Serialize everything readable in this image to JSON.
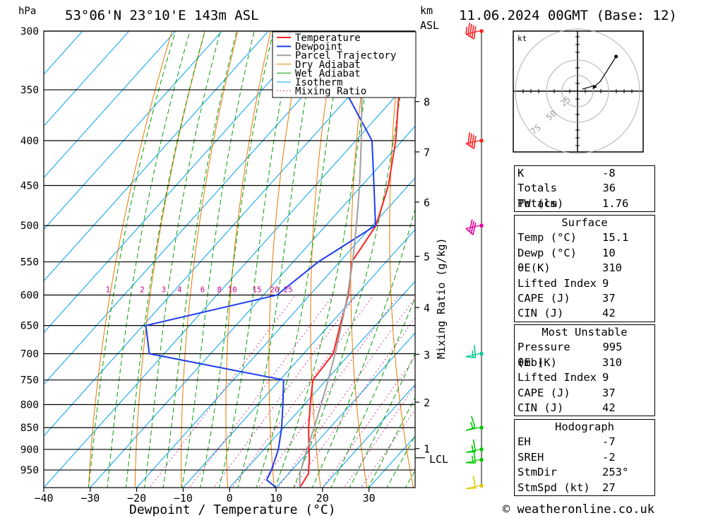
{
  "header": {
    "location": "53°06'N 23°10'E 143m ASL",
    "datetime": "11.06.2024 00GMT (Base: 12)",
    "pressure_unit": "hPa",
    "km_label": "km",
    "asl_label": "ASL"
  },
  "axes": {
    "xlabel": "Dewpoint / Temperature (°C)",
    "mixing_ratio_label": "Mixing Ratio (g/kg)",
    "lcl_label": "LCL"
  },
  "legend": [
    "Temperature",
    "Dewpoint",
    "Parcel Trajectory",
    "Dry Adiabat",
    "Wet Adiabat",
    "Isotherm",
    "Mixing Ratio"
  ],
  "colors": {
    "temperature": "#ff2020",
    "dewpoint": "#1e3cf0",
    "parcel": "#a0a0a0",
    "dry_adiabat": "#e87800",
    "wet_adiabat": "#00a000",
    "isotherm": "#00a0f0",
    "mixing_ratio": "#d0008c"
  },
  "chart_data": {
    "type": "line",
    "title": "53°06'N 23°10'E 143m ASL",
    "xlabel": "Dewpoint / Temperature (°C)",
    "ylabel": "hPa",
    "pressure_levels": [
      300,
      350,
      400,
      450,
      500,
      550,
      600,
      650,
      700,
      750,
      800,
      850,
      900,
      950
    ],
    "temperature_ticks": [
      -40,
      -30,
      -20,
      -10,
      0,
      10,
      20,
      30
    ],
    "xlim": [
      -40,
      40
    ],
    "ylim": [
      300,
      995
    ],
    "km_ticks": [
      {
        "label": "1",
        "p": 898
      },
      {
        "label": "2",
        "p": 795
      },
      {
        "label": "3",
        "p": 701
      },
      {
        "label": "4",
        "p": 620
      },
      {
        "label": "5",
        "p": 542
      },
      {
        "label": "6",
        "p": 470
      },
      {
        "label": "7",
        "p": 412
      },
      {
        "label": "8",
        "p": 361
      }
    ],
    "lcl_p": 920,
    "mixing_ratio_labels": [
      {
        "label": "1",
        "t": -26.2
      },
      {
        "label": "2",
        "t": -18.8
      },
      {
        "label": "3",
        "t": -14.2
      },
      {
        "label": "4",
        "t": -10.8
      },
      {
        "label": "6",
        "t": -5.8
      },
      {
        "label": "8",
        "t": -2.2
      },
      {
        "label": "10",
        "t": 0.6
      },
      {
        "label": "15",
        "t": 5.9
      },
      {
        "label": "20",
        "t": 9.7
      },
      {
        "label": "25",
        "t": 12.6
      }
    ],
    "series": [
      {
        "name": "Temperature",
        "points": [
          [
            995,
            15.1
          ],
          [
            960,
            14.3
          ],
          [
            925,
            11.8
          ],
          [
            900,
            9.7
          ],
          [
            850,
            5.4
          ],
          [
            800,
            1.3
          ],
          [
            750,
            -2.9
          ],
          [
            700,
            -3.6
          ],
          [
            650,
            -7.6
          ],
          [
            600,
            -11.7
          ],
          [
            550,
            -17.4
          ],
          [
            500,
            -19.2
          ],
          [
            450,
            -24.3
          ],
          [
            400,
            -31.4
          ],
          [
            350,
            -40.5
          ],
          [
            300,
            -50.1
          ]
        ]
      },
      {
        "name": "Dewpoint",
        "points": [
          [
            995,
            10.0
          ],
          [
            975,
            6.5
          ],
          [
            950,
            5.6
          ],
          [
            900,
            3.1
          ],
          [
            850,
            -0.4
          ],
          [
            800,
            -4.6
          ],
          [
            750,
            -9.2
          ],
          [
            700,
            -43.2
          ],
          [
            650,
            -49.4
          ],
          [
            600,
            -27.1
          ],
          [
            550,
            -24.6
          ],
          [
            500,
            -19.3
          ],
          [
            450,
            -27.4
          ],
          [
            400,
            -36.5
          ],
          [
            350,
            -52.2
          ],
          [
            300,
            -63.3
          ]
        ]
      },
      {
        "name": "Parcel Trajectory",
        "points": [
          [
            995,
            15.1
          ],
          [
            960,
            12.5
          ],
          [
            920,
            10.3
          ],
          [
            900,
            9.3
          ],
          [
            850,
            6.6
          ],
          [
            800,
            3.6
          ],
          [
            750,
            0.4
          ],
          [
            700,
            -3.2
          ],
          [
            650,
            -7.3
          ],
          [
            600,
            -11.9
          ],
          [
            550,
            -17.2
          ],
          [
            500,
            -23.4
          ],
          [
            450,
            -30.5
          ],
          [
            400,
            -38.8
          ],
          [
            350,
            -48.5
          ],
          [
            300,
            -59.5
          ]
        ]
      }
    ],
    "wind_barbs": [
      {
        "p": 300,
        "dir": 285,
        "speed_kt": 45
      },
      {
        "p": 400,
        "dir": 285,
        "speed_kt": 40
      },
      {
        "p": 500,
        "dir": 295,
        "speed_kt": 30
      },
      {
        "p": 700,
        "dir": 260,
        "speed_kt": 15
      },
      {
        "p": 850,
        "dir": 235,
        "speed_kt": 15
      },
      {
        "p": 900,
        "dir": 250,
        "speed_kt": 15
      },
      {
        "p": 925,
        "dir": 255,
        "speed_kt": 15
      },
      {
        "p": 990,
        "dir": 250,
        "speed_kt": 10
      }
    ],
    "hodograph": {
      "unit_label": "kt",
      "ring_labels": [
        "25",
        "50",
        "75"
      ],
      "points": [
        [
          5,
          2
        ],
        [
          20,
          6
        ],
        [
          25,
          10
        ],
        [
          42,
          35
        ]
      ]
    }
  },
  "indices": {
    "top": [
      {
        "label": "K",
        "value": "-8"
      },
      {
        "label": "Totals Totals",
        "value": "36"
      },
      {
        "label": "PW (cm)",
        "value": "1.76"
      }
    ],
    "surface": {
      "title": "Surface",
      "rows": [
        {
          "label": "Temp (°C)",
          "value": "15.1"
        },
        {
          "label": "Dewp (°C)",
          "value": "10"
        },
        {
          "label": "θE(K)",
          "value": "310"
        },
        {
          "label": "Lifted Index",
          "value": "9"
        },
        {
          "label": "CAPE (J)",
          "value": "37"
        },
        {
          "label": "CIN (J)",
          "value": "42"
        }
      ]
    },
    "most_unstable": {
      "title": "Most Unstable",
      "rows": [
        {
          "label": "Pressure (mb)",
          "value": "995"
        },
        {
          "label": "θE (K)",
          "value": "310"
        },
        {
          "label": "Lifted Index",
          "value": "9"
        },
        {
          "label": "CAPE (J)",
          "value": "37"
        },
        {
          "label": "CIN (J)",
          "value": "42"
        }
      ]
    },
    "hodograph": {
      "title": "Hodograph",
      "rows": [
        {
          "label": "EH",
          "value": "-7"
        },
        {
          "label": "SREH",
          "value": "-2"
        },
        {
          "label": "StmDir",
          "value": "253°"
        },
        {
          "label": "StmSpd (kt)",
          "value": "27"
        }
      ]
    }
  },
  "footer": "© weatheronline.co.uk"
}
